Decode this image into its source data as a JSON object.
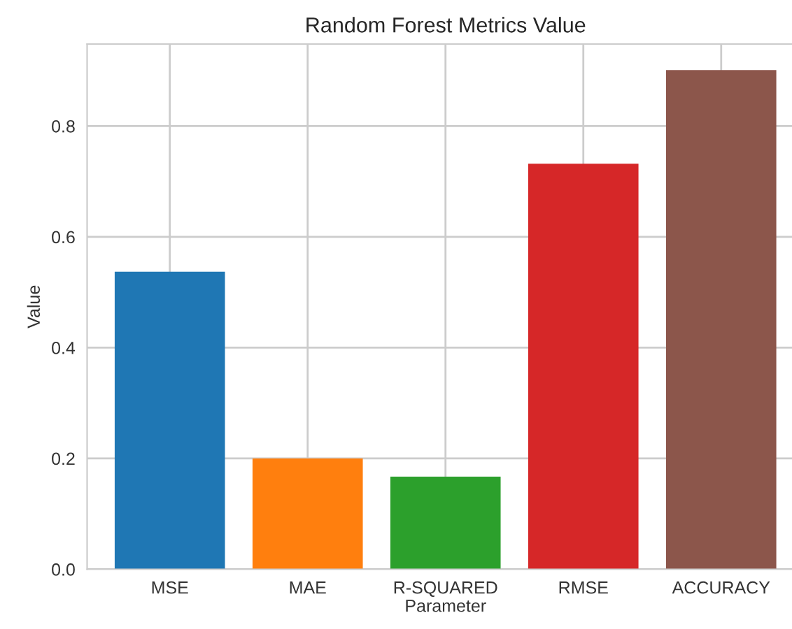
{
  "chart_data": {
    "type": "bar",
    "title": "Random Forest Metrics Value",
    "xlabel": "Parameter",
    "ylabel": "Value",
    "categories": [
      "MSE",
      "MAE",
      "R-SQUARED",
      "RMSE",
      "ACCURACY"
    ],
    "values": [
      0.537,
      0.2,
      0.167,
      0.732,
      0.901
    ],
    "colors": [
      "#1f77b4",
      "#ff7f0e",
      "#2ca02c",
      "#d62728",
      "#8c564b"
    ],
    "ylim": [
      0,
      0.948
    ],
    "yticks": [
      {
        "value": 0,
        "label": "0.0"
      },
      {
        "value": 0.2,
        "label": "0.2"
      },
      {
        "value": 0.4,
        "label": "0.4"
      },
      {
        "value": 0.6,
        "label": "0.6"
      },
      {
        "value": 0.8,
        "label": "0.8"
      }
    ],
    "grid": true
  }
}
